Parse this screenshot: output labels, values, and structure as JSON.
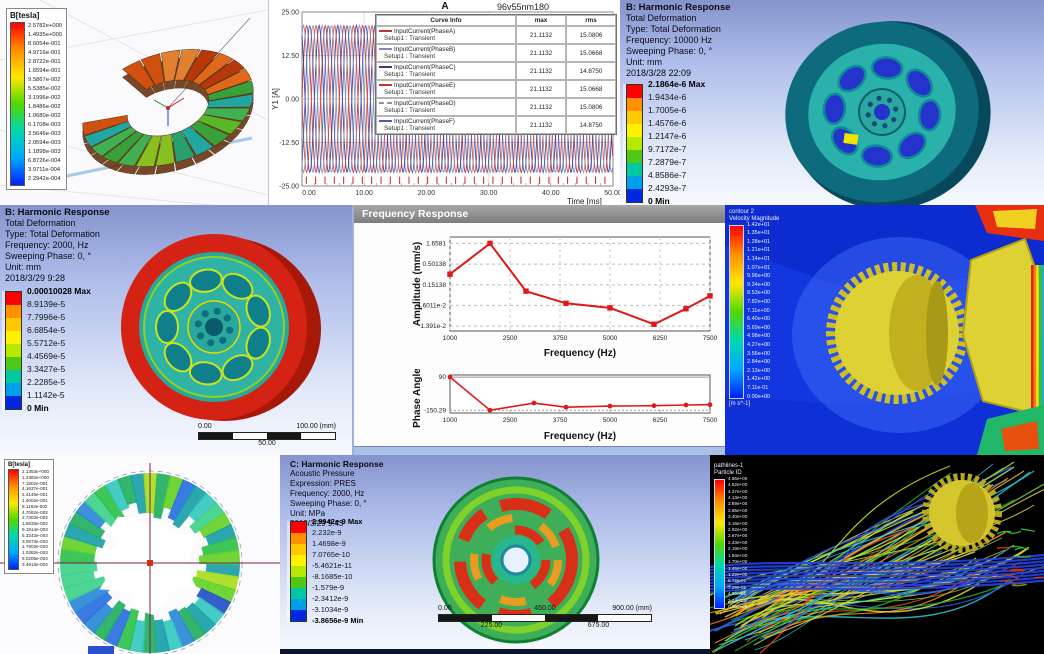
{
  "collage": {
    "description": "CAE simulation results collage: electromagnetic field plots, harmonic response deformation, frequency response charts and CFD flow fields"
  },
  "colors": {
    "ansys_bands": [
      "#ff0000",
      "#ff9100",
      "#ffc800",
      "#fff200",
      "#b6e800",
      "#50c818",
      "#00c8a0",
      "#00a0e8",
      "#0028e0"
    ],
    "rainbow_stops": [
      "#ff0000",
      "#ff9000",
      "#ffe800",
      "#50d800",
      "#00d8b0",
      "#00a8ff",
      "#0020ff"
    ],
    "cfd_background_blue": "#1236e0",
    "curve_red": "#e01818"
  },
  "panels": {
    "maxwell_toroid": {
      "legend_title": "B[tesla]",
      "legend_values": [
        "2.5782e+000",
        "1.4935e+000",
        "8.6054e-001",
        "4.9716e-001",
        "2.8722e-001",
        "1.6594e-001",
        "9.5867e-002",
        "5.5385e-002",
        "3.1996e-002",
        "1.8486e-002",
        "1.0680e-002",
        "6.1708e-003",
        "3.5646e-003",
        "2.0594e-003",
        "1.1898e-003",
        "6.8726e-004",
        "3.9711e-004",
        "2.2942e-004"
      ]
    },
    "transient_plot": {
      "title": "A",
      "model_label": "96v55nm180",
      "y_label": "Y1 [A]",
      "x_label": "Time [ms]",
      "y_ticks": [
        "25.00",
        "12.50",
        "0.00",
        "-12.50",
        "-25.00"
      ],
      "x_ticks": [
        "0.00",
        "10.00",
        "20.00",
        "30.00",
        "40.00",
        "50.00"
      ],
      "legend": {
        "headers": [
          "Curve Info",
          "max",
          "rms"
        ],
        "rows": [
          {
            "name": "InputCurrent(PhaseA)",
            "sub": "Setup1 : Transient",
            "max": "21.1132",
            "rms": "15.0806",
            "color": "#c03434",
            "dash": "solid"
          },
          {
            "name": "InputCurrent(PhaseB)",
            "sub": "Setup1 : Transient",
            "max": "21.1132",
            "rms": "15.0668",
            "color": "#8585c8",
            "dash": "solid"
          },
          {
            "name": "InputCurrent(PhaseC)",
            "sub": "Setup1 : Transient",
            "max": "21.1132",
            "rms": "14.8750",
            "color": "#3a3a8c",
            "dash": "solid"
          },
          {
            "name": "InputCurrent(PhaseE)",
            "sub": "Setup1 : Transient",
            "max": "21.1132",
            "rms": "15.0668",
            "color": "#c03434",
            "dash": "solid"
          },
          {
            "name": "InputCurrent(PhaseD)",
            "sub": "Setup1 : Transient",
            "max": "21.1132",
            "rms": "15.0806",
            "color": "#909090",
            "dash": "dashed"
          },
          {
            "name": "InputCurrent(PhaseF)",
            "sub": "Setup1 : Transient",
            "max": "21.1132",
            "rms": "14.8750",
            "color": "#4a5ab0",
            "dash": "solid"
          }
        ]
      }
    },
    "harmonic_wheel_top": {
      "title": "B: Harmonic Response",
      "lines": [
        "Total Deformation",
        "Type: Total Deformation",
        "Frequency: 10000 Hz",
        "Sweeping Phase: 0, °",
        "Unit: mm",
        "2018/3/28 22:09"
      ],
      "legend_values": [
        "2.1864e-6 Max",
        "1.9434e-6",
        "1.7005e-6",
        "1.4576e-6",
        "1.2147e-6",
        "9.7172e-7",
        "7.2879e-7",
        "4.8586e-7",
        "2.4293e-7",
        "0 Min"
      ]
    },
    "harmonic_wheel_left": {
      "title": "B: Harmonic Response",
      "lines": [
        "Total Deformation",
        "Type: Total Deformation",
        "Frequency: 2000, Hz",
        "Sweeping Phase: 0, °",
        "Unit: mm",
        "2018/3/29 9:28"
      ],
      "legend_values": [
        "0.00010028 Max",
        "8.9139e-5",
        "7.7996e-5",
        "6.6854e-5",
        "5.5712e-5",
        "4.4569e-5",
        "3.3427e-5",
        "2.2285e-5",
        "1.1142e-5",
        "0 Min"
      ],
      "ruler_top": [
        "0.00",
        "100.00 (mm)"
      ],
      "ruler_bottom": [
        "50.00"
      ]
    },
    "frequency_response": {
      "window_title": "Frequency Response",
      "amplitude": {
        "y_label": "Amplitude (mm/s)",
        "y_ticks": [
          "1.6581",
          "0.50138",
          "0.15138",
          "4.6011e-2",
          "1.391e-2"
        ],
        "x_ticks": [
          "1000",
          "2500",
          "3750",
          "5000",
          "6250",
          "7500"
        ],
        "x_label": "Frequency (Hz)"
      },
      "phase": {
        "y_label": "Phase Angle",
        "y_ticks": [
          "90",
          "-150.29"
        ],
        "x_ticks": [
          "1000",
          "2500",
          "3750",
          "5000",
          "6250",
          "7500"
        ],
        "x_label": "Frequency (Hz)"
      }
    },
    "velocity_contour": {
      "header": [
        "contour 2",
        "Velocity Magnitude"
      ],
      "unit": "[m s^-1]",
      "legend_values": [
        "1.42e+01",
        "1.35e+01",
        "1.28e+01",
        "1.21e+01",
        "1.14e+01",
        "1.07e+01",
        "9.96e+00",
        "9.24e+00",
        "8.53e+00",
        "7.82e+00",
        "7.11e+00",
        "6.40e+00",
        "5.69e+00",
        "4.98e+00",
        "4.27e+00",
        "3.56e+00",
        "2.84e+00",
        "2.13e+00",
        "1.42e+00",
        "7.11e-01",
        "0.00e+00"
      ]
    },
    "maxwell_ring": {
      "legend_title": "B[tesla]",
      "legend_values": [
        "2.1353e+000",
        "1.2382e+000",
        "7.1802e-001",
        "4.1637e-001",
        "2.4146e-001",
        "1.4002e-001",
        "8.1193e-002",
        "4.7082e-002",
        "2.7303e-002",
        "1.5833e-002",
        "9.1814e-003",
        "5.3242e-003",
        "3.0873e-003",
        "1.7903e-003",
        "1.0382e-003",
        "6.0205e-004",
        "3.4913e-004"
      ]
    },
    "acoustic_disc": {
      "title": "C: Harmonic Response",
      "lines": [
        "Acoustic Pressure",
        "Expression: PRES",
        "Frequency: 2000, Hz",
        "Sweeping Phase: 0, °",
        "Unit: MPa",
        "2018/3/29 9:43"
      ],
      "legend_values": [
        "2.9942e-9 Max",
        "2.232e-9",
        "1.4698e-9",
        "7.0765e-10",
        "-5.4621e-11",
        "-8.1685e-10",
        "-1.579e-9",
        "-2.3412e-9",
        "-3.1034e-9",
        "-3.8656e-9 Min"
      ],
      "ruler_top": [
        "0.00",
        "450.00",
        "900.00 (mm)"
      ],
      "ruler_bottom": [
        "225.00",
        "675.00"
      ]
    },
    "streamlines": {
      "header": [
        "pathlines-1",
        "Particle ID"
      ],
      "legend_values": [
        "4.86e+00",
        "4.62e+00",
        "4.37e+00",
        "4.13e+00",
        "3.89e+00",
        "3.65e+00",
        "3.40e+00",
        "3.16e+00",
        "2.92e+00",
        "2.67e+00",
        "2.43e+00",
        "2.19e+00",
        "1.94e+00",
        "1.70e+00",
        "1.46e+00",
        "1.22e+00",
        "9.72e-01",
        "7.29e-01",
        "4.86e-01",
        "2.43e-01",
        "0.00e+00"
      ]
    }
  },
  "chart_data": [
    {
      "type": "line",
      "title": "96v55nm180",
      "xlabel": "Time [ms]",
      "ylabel": "Y1 [A]",
      "xlim": [
        0,
        50
      ],
      "ylim": [
        -25,
        25
      ],
      "description": "Six sinusoidal input current phases, amplitude 21.1132 A, period ~3 ms",
      "series": [
        {
          "name": "InputCurrent(PhaseA)",
          "amplitude": 21.1132,
          "period_ms": 3,
          "phase_deg": 0,
          "color": "#c03434"
        },
        {
          "name": "InputCurrent(PhaseB)",
          "amplitude": 21.1132,
          "period_ms": 3,
          "phase_deg": 60,
          "color": "#8585c8"
        },
        {
          "name": "InputCurrent(PhaseC)",
          "amplitude": 21.1132,
          "period_ms": 3,
          "phase_deg": 120,
          "color": "#3a3a8c"
        },
        {
          "name": "InputCurrent(PhaseE)",
          "amplitude": 21.1132,
          "period_ms": 3,
          "phase_deg": 180,
          "color": "#d04848"
        },
        {
          "name": "InputCurrent(PhaseD)",
          "amplitude": 21.1132,
          "period_ms": 3,
          "phase_deg": 240,
          "color": "#9090a0"
        },
        {
          "name": "InputCurrent(PhaseF)",
          "amplitude": 21.1132,
          "period_ms": 3,
          "phase_deg": 300,
          "color": "#4a5ab0"
        }
      ]
    },
    {
      "type": "line",
      "title": "Frequency Response - Amplitude",
      "xlabel": "Frequency (Hz)",
      "ylabel": "Amplitude (mm/s)",
      "y_scale": "log",
      "xlim": [
        1000,
        7500
      ],
      "x": [
        1000,
        2000,
        2900,
        3900,
        5000,
        6100,
        6900,
        7500
      ],
      "y": [
        0.28,
        1.6581,
        0.105,
        0.052,
        0.04,
        0.0155,
        0.038,
        0.08
      ],
      "line_color": "#e01818"
    },
    {
      "type": "line",
      "title": "Frequency Response - Phase",
      "xlabel": "Frequency (Hz)",
      "ylabel": "Phase Angle",
      "ylim": [
        -170,
        100
      ],
      "x": [
        1000,
        2000,
        3100,
        3900,
        5000,
        6100,
        6900,
        7500
      ],
      "y": [
        90,
        -150,
        -98,
        -128,
        -120,
        -117,
        -112,
        -110
      ],
      "line_color": "#e01818"
    }
  ]
}
